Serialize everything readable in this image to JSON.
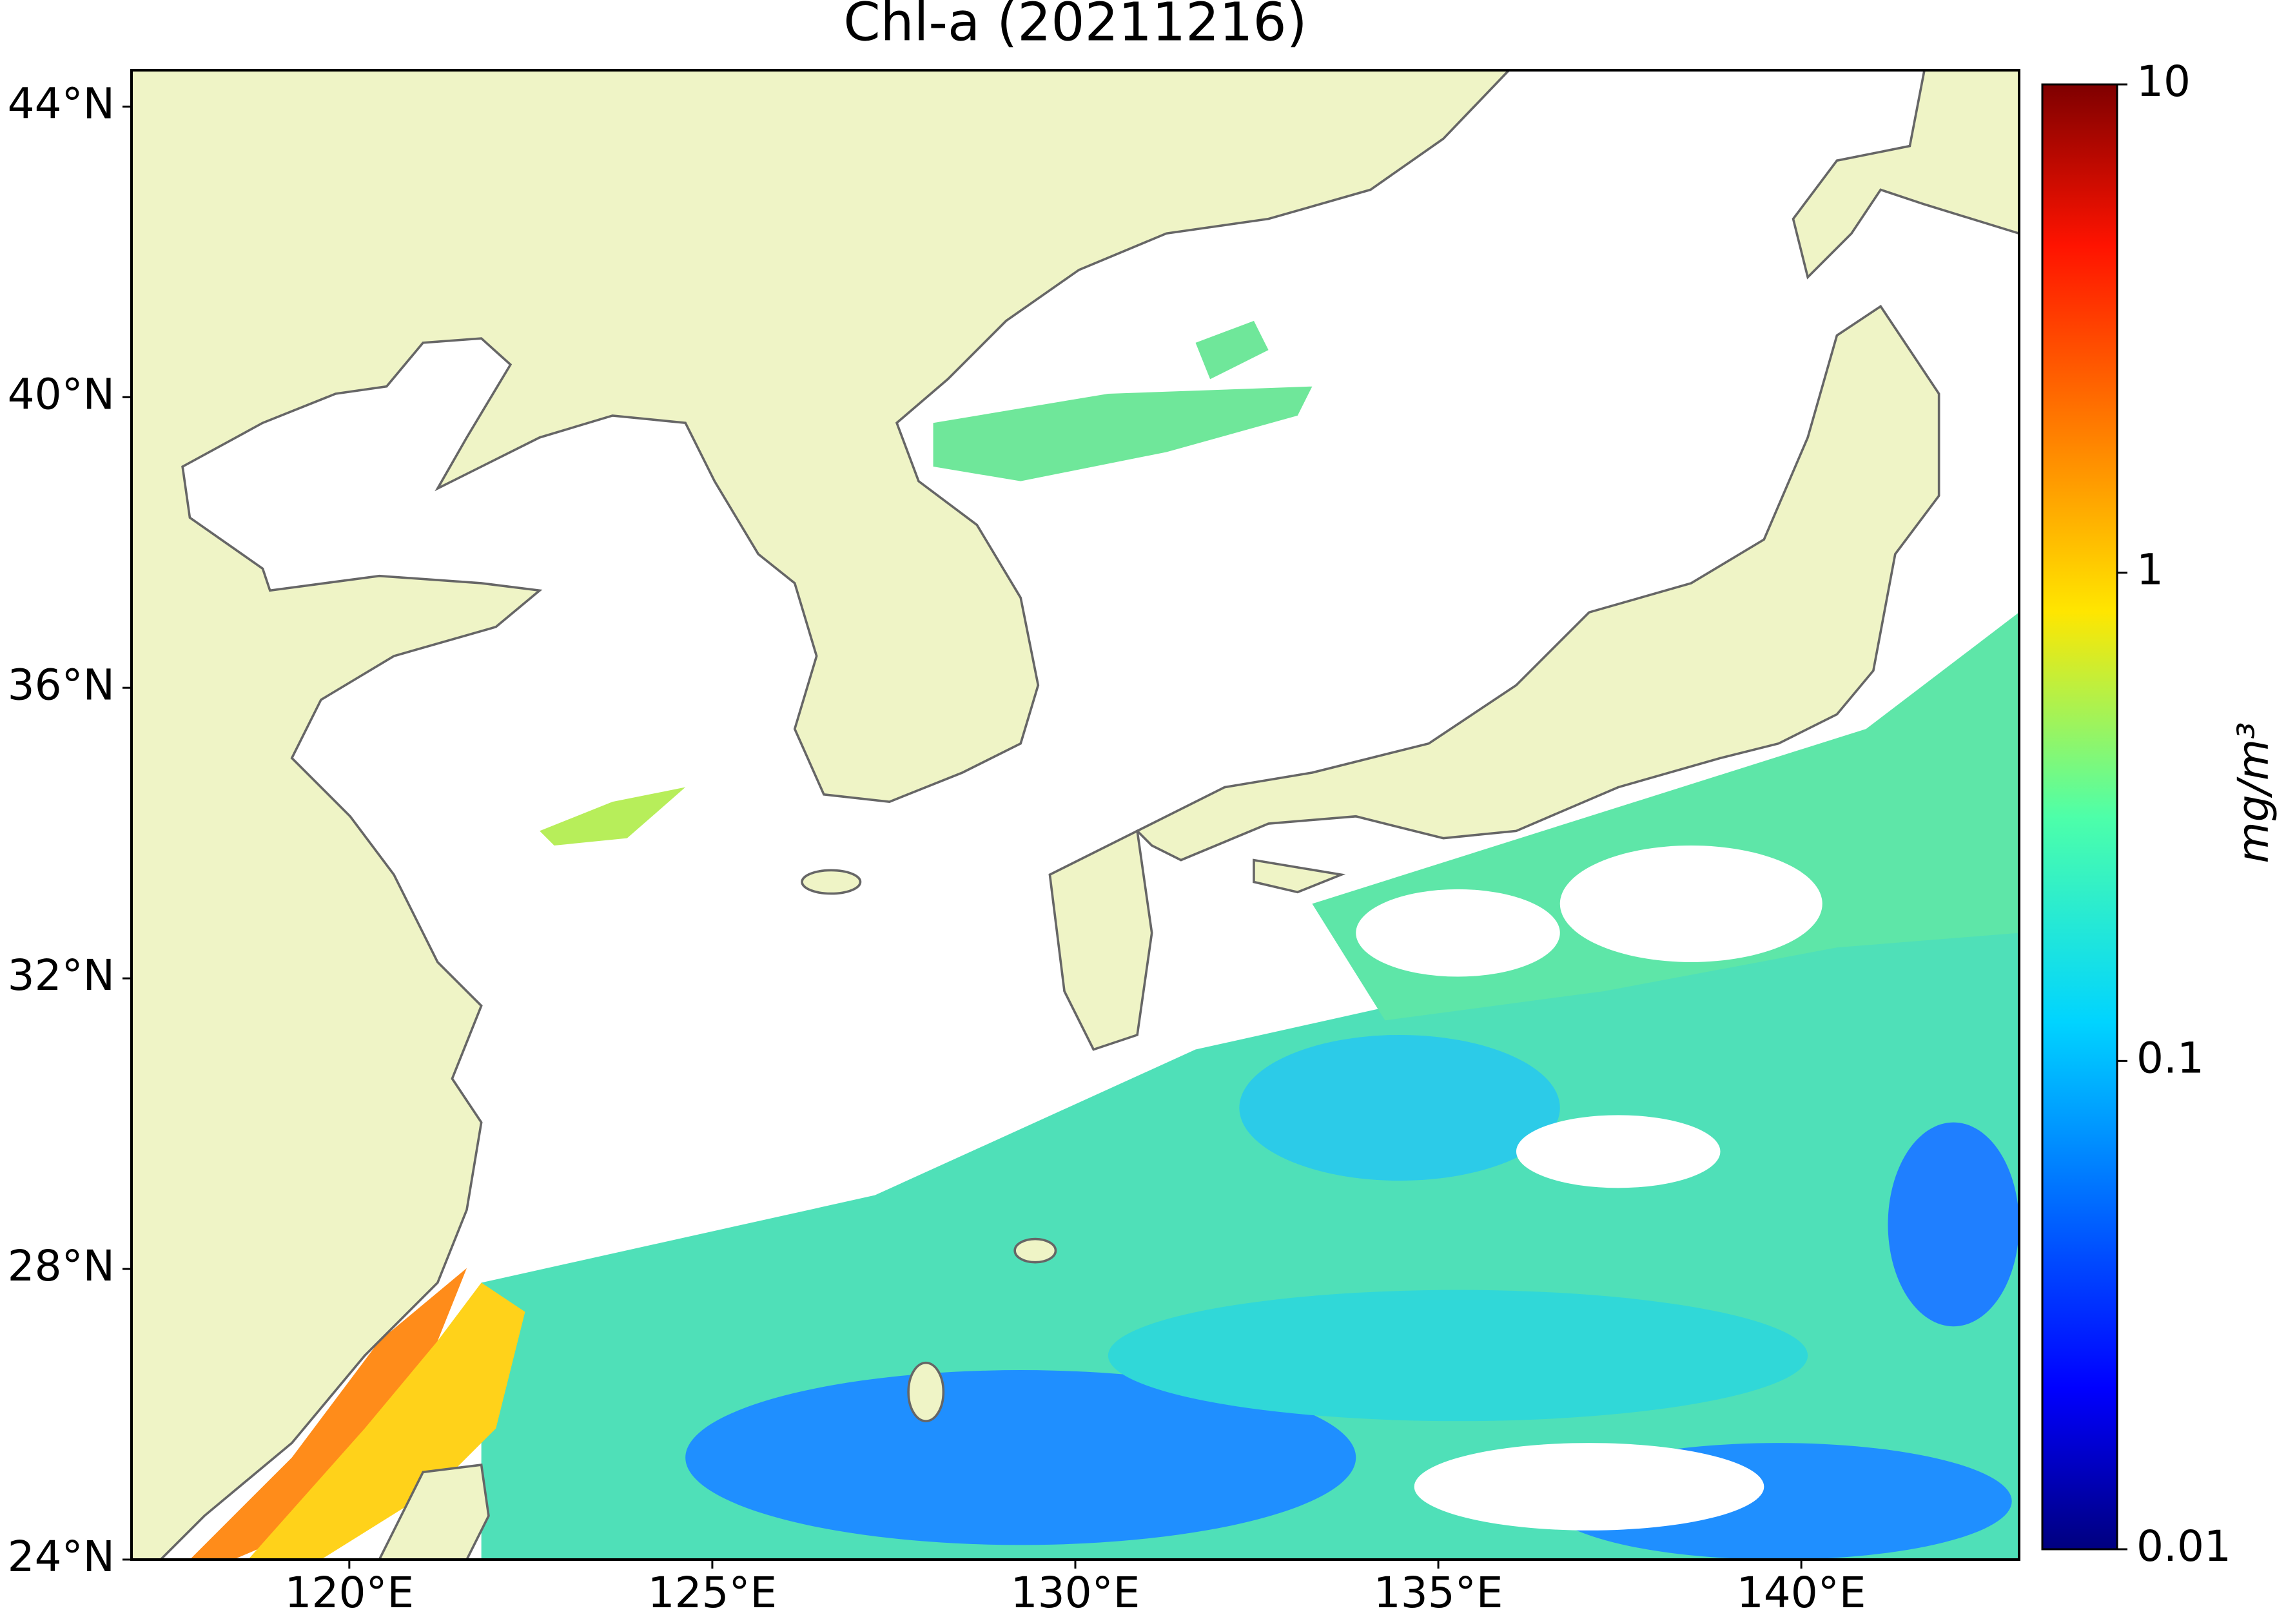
{
  "chart_data": {
    "type": "map",
    "title": "Chl-a (20211216)",
    "xlim": [
      117,
      143
    ],
    "ylim": [
      24,
      44.5
    ],
    "xticks": [
      {
        "value": 120,
        "label": "120°E"
      },
      {
        "value": 125,
        "label": "125°E"
      },
      {
        "value": 130,
        "label": "130°E"
      },
      {
        "value": 135,
        "label": "135°E"
      },
      {
        "value": 140,
        "label": "140°E"
      }
    ],
    "yticks": [
      {
        "value": 24,
        "label": "24°N"
      },
      {
        "value": 28,
        "label": "28°N"
      },
      {
        "value": 32,
        "label": "32°N"
      },
      {
        "value": 36,
        "label": "36°N"
      },
      {
        "value": 40,
        "label": "40°N"
      },
      {
        "value": 44,
        "label": "44°N"
      }
    ],
    "colorbar": {
      "label": "mg/m³",
      "scale": "log",
      "lim": [
        0.01,
        10
      ],
      "ticks": [
        0.01,
        0.1,
        1,
        10
      ]
    }
  }
}
